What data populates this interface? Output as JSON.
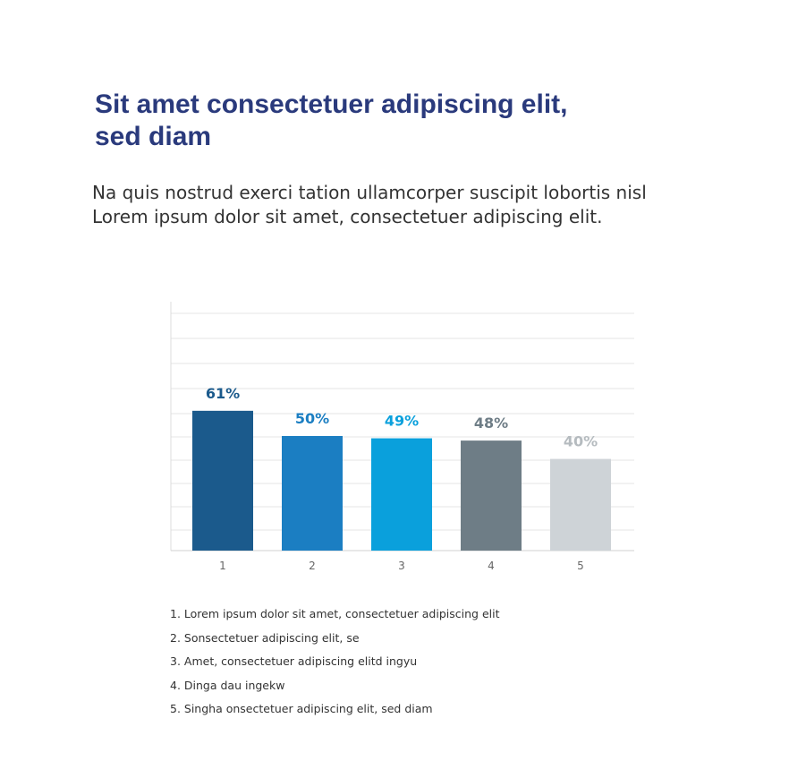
{
  "heading": {
    "title_line1": "Sit amet consectetuer adipiscing elit,",
    "title_line2": "sed diam",
    "subtitle_line1": "Na quis nostrud exerci tation ullamcorper suscipit lobortis nisl",
    "subtitle_line2": "Lorem ipsum dolor sit amet, consectetuer adipiscing elit."
  },
  "chart_data": {
    "type": "bar",
    "categories": [
      "1",
      "2",
      "3",
      "4",
      "5"
    ],
    "values": [
      61,
      50,
      49,
      48,
      40
    ],
    "value_labels": [
      "61%",
      "50%",
      "49%",
      "48%",
      "40%"
    ],
    "colors": [
      "#1b5a8c",
      "#1b7ec2",
      "#0aa0dc",
      "#6e7d86",
      "#ced3d7"
    ],
    "label_colors": [
      "#1b5a8c",
      "#1b7ec2",
      "#0aa0dc",
      "#6e7d86",
      "#b5bbbf"
    ],
    "ylim": [
      0,
      100
    ],
    "grid": true
  },
  "legend": {
    "items": [
      "1. Lorem ipsum dolor sit amet, consectetuer adipiscing elit",
      "2. Sonsectetuer adipiscing elit, se",
      "3. Amet, consectetuer adipiscing elitd ingyu",
      "4. Dinga dau ingekw",
      "5. Singha onsectetuer adipiscing elit, sed diam"
    ]
  }
}
